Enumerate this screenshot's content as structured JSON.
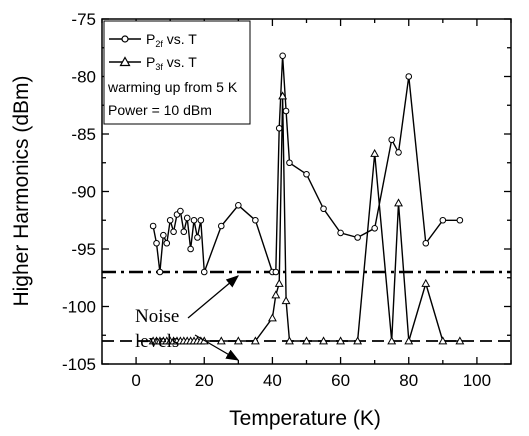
{
  "chart_data": {
    "type": "line",
    "title": "",
    "xlabel": "Temperature (K)",
    "ylabel": "Higher Harmonics (dBm)",
    "xlim": [
      -10,
      110
    ],
    "ylim": [
      -105,
      -75
    ],
    "xticks": [
      0,
      20,
      40,
      60,
      80,
      100
    ],
    "yticks": [
      -105,
      -100,
      -95,
      -90,
      -85,
      -80,
      -75
    ],
    "grid": false,
    "legend_position": "top-left",
    "series": [
      {
        "name_main": "P",
        "name_sub": "2f",
        "name_suffix": " vs. T",
        "marker": "circle",
        "x": [
          5,
          6,
          7,
          8,
          9,
          10,
          11,
          12,
          13,
          14,
          15,
          16,
          17,
          18,
          19,
          20,
          25,
          30,
          35,
          40,
          41,
          42,
          43,
          44,
          45,
          50,
          55,
          60,
          65,
          70,
          75,
          77,
          80,
          85,
          90,
          95
        ],
        "y": [
          -93,
          -94.5,
          -97,
          -93.8,
          -94.5,
          -92.5,
          -93.5,
          -92,
          -91.7,
          -93.5,
          -92.3,
          -95,
          -92.5,
          -94,
          -92.5,
          -97,
          -93,
          -91.2,
          -92.5,
          -97,
          -97,
          -84.5,
          -78.2,
          -83,
          -87.5,
          -88.5,
          -91.5,
          -93.6,
          -94,
          -93.2,
          -85.5,
          -86.6,
          -80,
          -94.5,
          -92.5,
          -92.5
        ]
      },
      {
        "name_main": "P",
        "name_sub": "3f",
        "name_suffix": " vs. T",
        "marker": "triangle",
        "x": [
          5,
          6,
          7,
          8,
          9,
          10,
          11,
          12,
          13,
          14,
          15,
          16,
          17,
          18,
          19,
          20,
          25,
          30,
          35,
          40,
          41,
          42,
          43,
          44,
          45,
          50,
          55,
          60,
          65,
          70,
          75,
          77,
          80,
          85,
          90,
          95
        ],
        "y": [
          -103,
          -103,
          -103,
          -103,
          -103,
          -103,
          -103,
          -103,
          -103,
          -103,
          -103,
          -103,
          -103,
          -103,
          -103,
          -103,
          -103,
          -103,
          -103,
          -101,
          -99,
          -98,
          -81.7,
          -99.5,
          -103,
          -103,
          -103,
          -103,
          -103,
          -86.7,
          -103,
          -91,
          -103,
          -98,
          -103,
          -103
        ]
      }
    ],
    "noise_levels": [
      {
        "y": -97,
        "style": "dash-dot"
      },
      {
        "y": -103,
        "style": "dashed"
      }
    ],
    "legend_notes": [
      "warming up from 5 K",
      "Power = 10 dBm"
    ],
    "annotation": {
      "line1": "Noise",
      "line2": "levels"
    }
  }
}
